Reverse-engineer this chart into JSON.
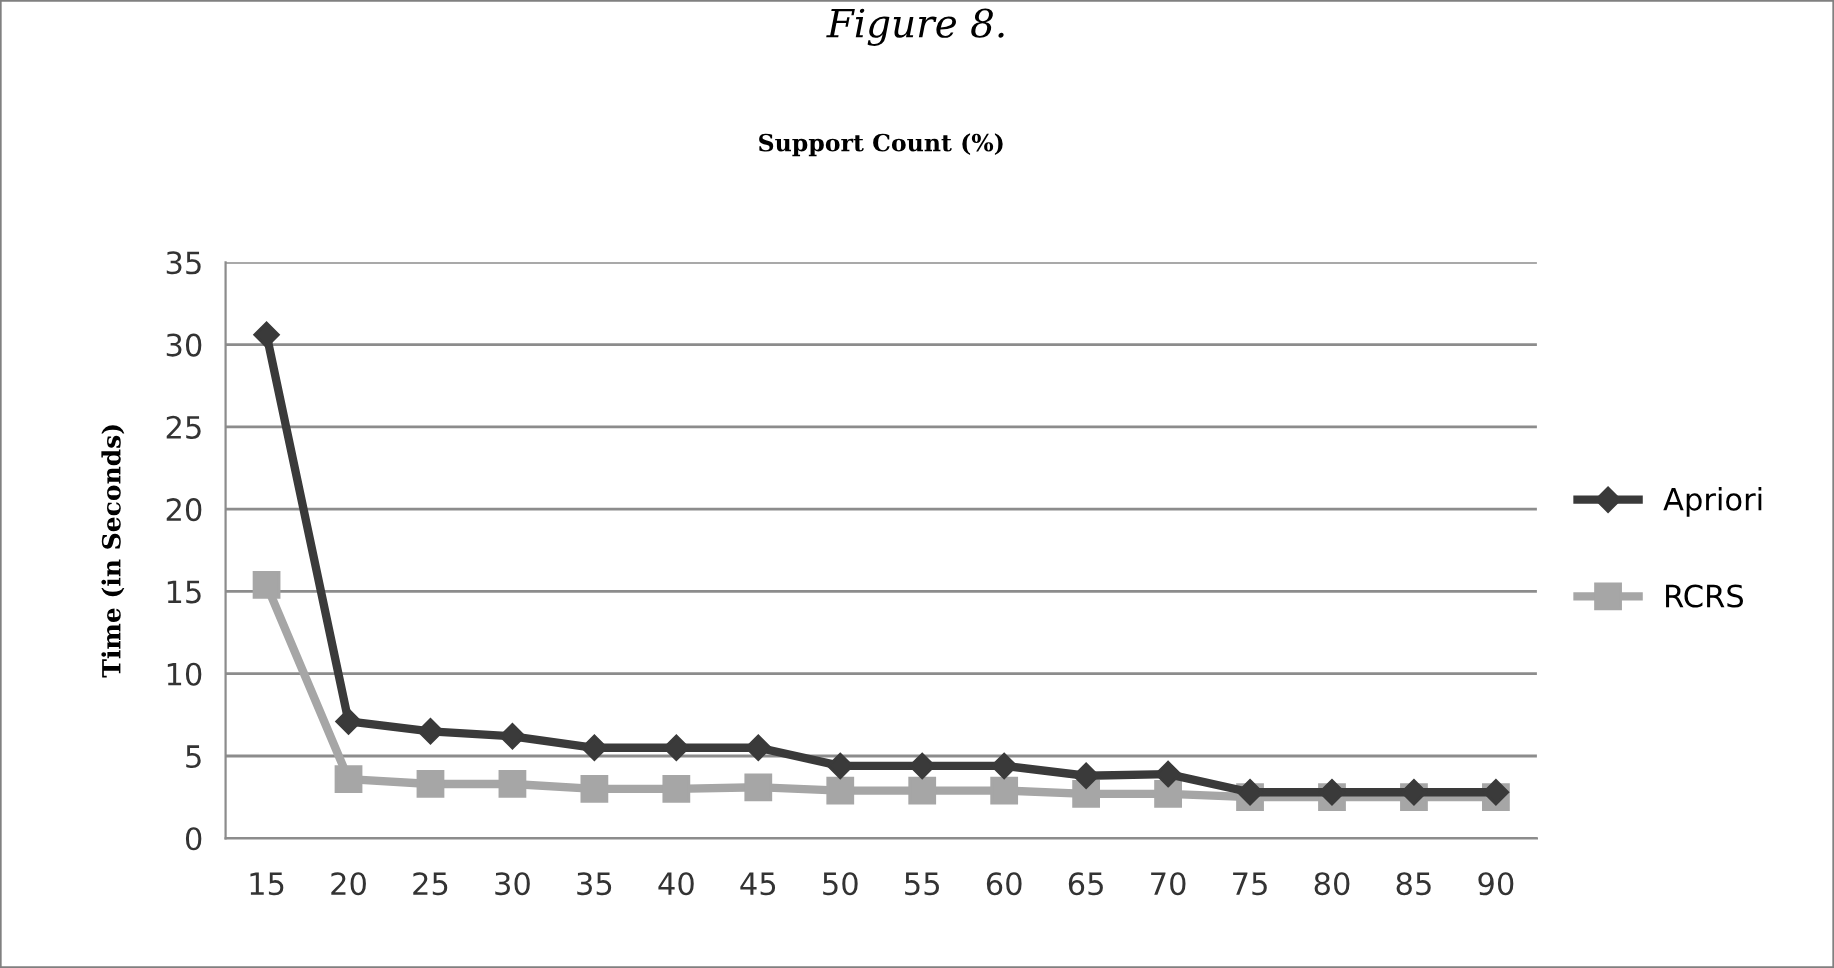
{
  "chart_data": {
    "type": "line",
    "title": "Support Count (%)",
    "ylabel": "Time (in Seconds)",
    "annotations": [
      "Figure 8."
    ],
    "categories": [
      "15",
      "20",
      "25",
      "30",
      "35",
      "40",
      "45",
      "50",
      "55",
      "60",
      "65",
      "70",
      "75",
      "80",
      "85",
      "90"
    ],
    "series": [
      {
        "name": "Apriori",
        "color": "#3a3a3a",
        "marker": "diamond",
        "values": [
          30.6,
          7.1,
          6.5,
          6.2,
          5.5,
          5.5,
          5.5,
          4.4,
          4.4,
          4.4,
          3.8,
          3.9,
          2.8,
          2.8,
          2.8,
          2.8
        ]
      },
      {
        "name": "RCRS",
        "color": "#a6a6a6",
        "marker": "square",
        "values": [
          15.4,
          3.6,
          3.3,
          3.3,
          3.0,
          3.0,
          3.1,
          2.9,
          2.9,
          2.9,
          2.7,
          2.7,
          2.5,
          2.5,
          2.5,
          2.5
        ]
      }
    ],
    "ylim": [
      0,
      35
    ],
    "yticks": [
      0,
      5,
      10,
      15,
      20,
      25,
      30,
      35
    ],
    "grid": "y",
    "legend": "right"
  }
}
